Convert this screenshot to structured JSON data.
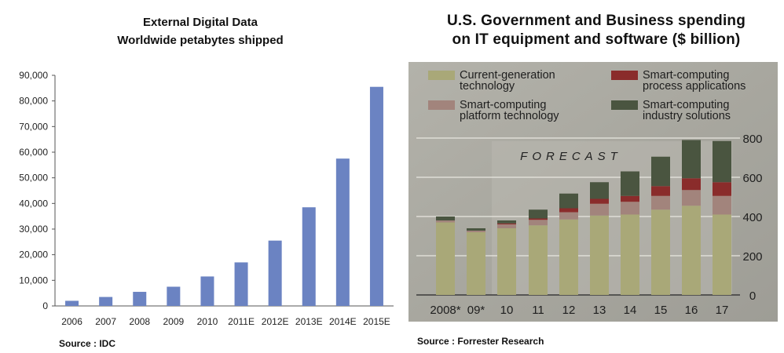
{
  "chart_data": [
    {
      "type": "bar",
      "title": "External Digital Data",
      "subtitle": "Worldwide petabytes shipped",
      "categories": [
        "2006",
        "2007",
        "2008",
        "2009",
        "2010",
        "2011E",
        "2012E",
        "2013E",
        "2014E",
        "2015E"
      ],
      "values": [
        2000,
        3500,
        5500,
        7500,
        11500,
        17000,
        25500,
        38500,
        57500,
        85500
      ],
      "ylim": [
        0,
        90000
      ],
      "yticks": [
        "0",
        "10,000",
        "20,000",
        "30,000",
        "40,000",
        "50,000",
        "60,000",
        "70,000",
        "80,000",
        "90,000"
      ],
      "bar_color": "#6b83c2",
      "source": "Source : IDC"
    },
    {
      "type": "stacked-bar",
      "title_line1": "U.S. Government and Business spending",
      "title_line2": "on IT equipment and software ($ billion)",
      "categories": [
        "2008*",
        "09*",
        "10",
        "11",
        "12",
        "13",
        "14",
        "15",
        "16",
        "17"
      ],
      "series": [
        {
          "name_line1": "Current-generation",
          "name_line2": "technology",
          "color": "#a9a878",
          "values": [
            370,
            320,
            340,
            355,
            385,
            405,
            410,
            435,
            455,
            410
          ]
        },
        {
          "name_line1": "Smart-computing",
          "name_line2": "platform technology",
          "color": "#a2847c",
          "values": [
            10,
            8,
            20,
            28,
            37,
            60,
            65,
            70,
            80,
            95
          ]
        },
        {
          "name_line1": "Smart-computing",
          "name_line2": "process applications",
          "color": "#8a2c2b",
          "values": [
            0,
            0,
            5,
            7,
            20,
            25,
            30,
            50,
            60,
            70
          ]
        },
        {
          "name_line1": "Smart-computing",
          "name_line2": "industry solutions",
          "color": "#4a5540",
          "values": [
            20,
            12,
            15,
            45,
            75,
            85,
            125,
            150,
            195,
            210
          ]
        }
      ],
      "ylim": [
        0,
        800
      ],
      "yticks": [
        "0",
        "200",
        "400",
        "600",
        "800"
      ],
      "annotation": "FORECAST",
      "source": "Source : Forrester Research"
    }
  ]
}
